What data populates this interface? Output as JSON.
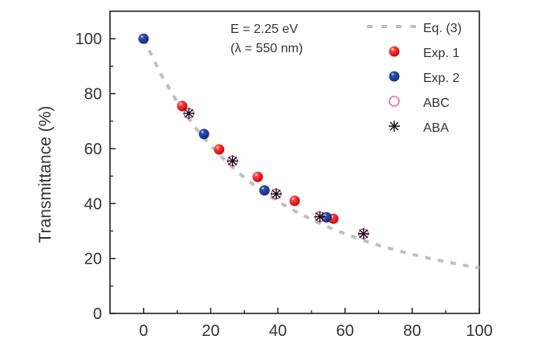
{
  "chart_data": {
    "type": "scatter",
    "title": "",
    "xlabel": "",
    "ylabel": "Transmittance (%)",
    "xlim": [
      -10,
      100
    ],
    "ylim": [
      0,
      110
    ],
    "xticks": [
      0,
      20,
      40,
      60,
      80,
      100
    ],
    "yticks": [
      0,
      20,
      40,
      60,
      80,
      100
    ],
    "annotation": [
      "E = 2.25 eV",
      "(λ = 550 nm)"
    ],
    "legend_position": "top-right",
    "series": [
      {
        "name": "Eq. (3)",
        "kind": "line",
        "color": "#c0c0c0",
        "style": "dashed",
        "formula": "T = 100 / (1 + 0.01357 x)^2",
        "x": [
          0,
          5,
          10,
          15,
          20,
          25,
          30,
          35,
          40,
          45,
          50,
          55,
          60,
          65,
          70,
          75,
          80,
          85,
          90,
          95,
          100
        ],
        "y": [
          100,
          87.4,
          77.0,
          68.3,
          61.0,
          54.8,
          49.4,
          44.8,
          40.8,
          37.3,
          34.2,
          31.4,
          29.0,
          26.8,
          24.8,
          23.1,
          21.5,
          20.1,
          18.8,
          17.6,
          16.6
        ]
      },
      {
        "name": "Exp. 1",
        "kind": "sphere",
        "color": "#ee1111",
        "x": [
          11.5,
          22.5,
          34,
          45,
          56.5
        ],
        "y": [
          75.5,
          59.7,
          49.7,
          41,
          34.5
        ]
      },
      {
        "name": "Exp. 2",
        "kind": "sphere",
        "color": "#1f3f99",
        "x": [
          0,
          18,
          36,
          54.5
        ],
        "y": [
          100,
          65.3,
          44.8,
          35
        ]
      },
      {
        "name": "ABC",
        "kind": "open-circle",
        "color": "#d966b0",
        "x": [
          13.5,
          26.5,
          39.5,
          52.5,
          65.5
        ],
        "y": [
          72.8,
          55.5,
          43.5,
          35.2,
          29
        ]
      },
      {
        "name": "ABA",
        "kind": "asterisk",
        "color": "#111111",
        "x": [
          13.5,
          26.5,
          39.5,
          52.5,
          65.5
        ],
        "y": [
          72.8,
          55.5,
          43.5,
          35.2,
          29
        ]
      }
    ]
  }
}
